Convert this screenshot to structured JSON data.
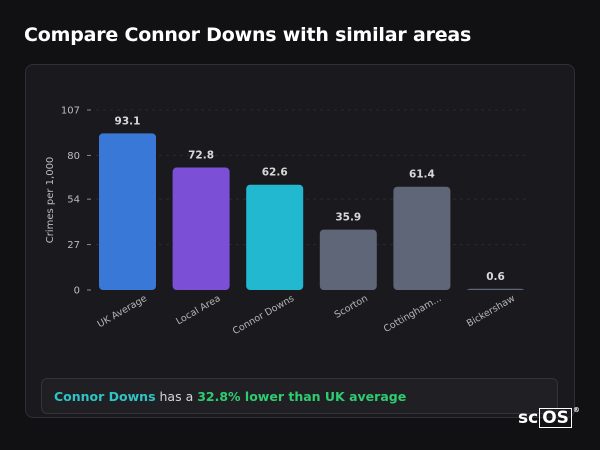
{
  "page": {
    "title": "Compare Connor Downs with similar areas"
  },
  "chart_data": {
    "type": "bar",
    "title": "",
    "xlabel": "",
    "ylabel": "Crimes per 1,000",
    "ylim": [
      0,
      107
    ],
    "yticks": [
      0,
      27,
      54,
      80,
      107
    ],
    "grid": false,
    "categories": [
      "UK Average",
      "Local Area",
      "Connor Downs",
      "Scorton",
      "Cottingham...",
      "Bickershaw"
    ],
    "values": [
      93.1,
      72.8,
      62.6,
      35.9,
      61.4,
      0.6
    ],
    "value_labels": [
      "93.1",
      "72.8",
      "62.6",
      "35.9",
      "61.4",
      "0.6"
    ],
    "colors": [
      "#3a78d8",
      "#7b4fd6",
      "#22b8cf",
      "#5e6677",
      "#5e6677",
      "#5e6677"
    ]
  },
  "summary": {
    "area": "Connor Downs",
    "middle": "has a",
    "comparison": "32.8% lower than UK average"
  },
  "logo": {
    "prefix": "sc",
    "boxed": "OS",
    "mark": "®"
  }
}
